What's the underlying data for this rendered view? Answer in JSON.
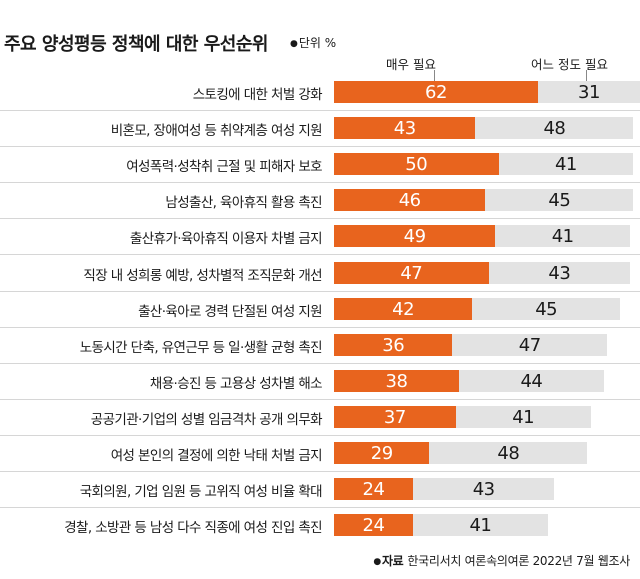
{
  "title": "주요 양성평등 정책에 대한 우선순위",
  "unit": "단위 %",
  "source_label": "자료",
  "source_text": "한국리서치 여론속의여론 2022년 7월 웹조사",
  "chart_data": {
    "type": "bar",
    "stacked": true,
    "orientation": "horizontal",
    "categories": [
      "스토킹에 대한 처벌 강화",
      "비혼모, 장애여성 등 취약계층 여성 지원",
      "여성폭력·성착취 근절 및 피해자 보호",
      "남성출산, 육아휴직 활용 촉진",
      "출산휴가·육아휴직 이용자 차별 금지",
      "직장 내 성희롱 예방, 성차별적 조직문화 개선",
      "출산·육아로 경력 단절된 여성 지원",
      "노동시간 단축, 유연근무 등 일·생활 균형 촉진",
      "채용·승진 등 고용상 성차별 해소",
      "공공기관·기업의 성별 임금격차 공개 의무화",
      "여성 본인의 결정에 의한 낙태 처벌 금지",
      "국회의원, 기업 임원 등 고위직 여성 비율 확대",
      "경찰, 소방관 등 남성 다수 직종에 여성 진입 촉진"
    ],
    "series": [
      {
        "name": "매우 필요",
        "color": "#e8641e",
        "values": [
          62,
          43,
          50,
          46,
          49,
          47,
          42,
          36,
          38,
          37,
          29,
          24,
          24
        ]
      },
      {
        "name": "어느 정도 필요",
        "color": "#e3e3e3",
        "values": [
          31,
          48,
          41,
          45,
          41,
          43,
          45,
          47,
          44,
          41,
          48,
          43,
          41
        ]
      }
    ],
    "xlim": [
      0,
      93
    ],
    "legend": "top"
  }
}
